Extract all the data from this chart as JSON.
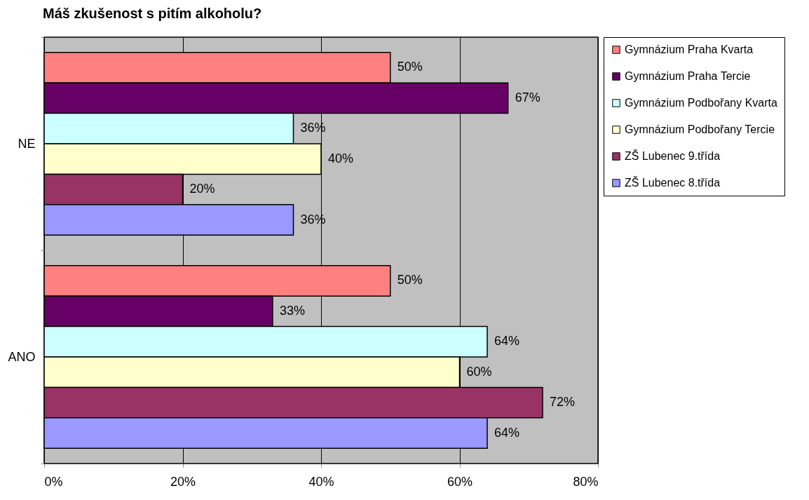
{
  "chart_data": {
    "type": "bar",
    "orientation": "horizontal",
    "title": "Máš zkušenost s pitím alkoholu?",
    "categories": [
      "NE",
      "ANO"
    ],
    "series": [
      {
        "name": "Gymnázium Praha Kvarta",
        "color": "#ff8080",
        "values": [
          50,
          50
        ],
        "value_labels": [
          "50%",
          "50%"
        ]
      },
      {
        "name": "Gymnázium Praha Tercie",
        "color": "#660066",
        "values": [
          67,
          33
        ],
        "value_labels": [
          "67%",
          "33%"
        ]
      },
      {
        "name": "Gymnázium Podbořany Kvarta",
        "color": "#ccffff",
        "values": [
          36,
          64
        ],
        "value_labels": [
          "36%",
          "64%"
        ]
      },
      {
        "name": "Gymnázium Podbořany Tercie",
        "color": "#ffffcc",
        "values": [
          40,
          60
        ],
        "value_labels": [
          "40%",
          "60%"
        ]
      },
      {
        "name": "ZŠ Lubenec 9.třída",
        "color": "#993366",
        "values": [
          20,
          72
        ],
        "value_labels": [
          "20%",
          "72%"
        ]
      },
      {
        "name": "ZŠ Lubenec 8.třída",
        "color": "#9999ff",
        "values": [
          36,
          64
        ],
        "value_labels": [
          "36%",
          "64%"
        ]
      }
    ],
    "xlim": [
      0,
      80
    ],
    "xticks": [
      {
        "value": 0,
        "label": "0%"
      },
      {
        "value": 20,
        "label": "20%"
      },
      {
        "value": 40,
        "label": "40%"
      },
      {
        "value": 60,
        "label": "60%"
      },
      {
        "value": 80,
        "label": "80%"
      }
    ],
    "grid": "x",
    "legend": "right"
  }
}
